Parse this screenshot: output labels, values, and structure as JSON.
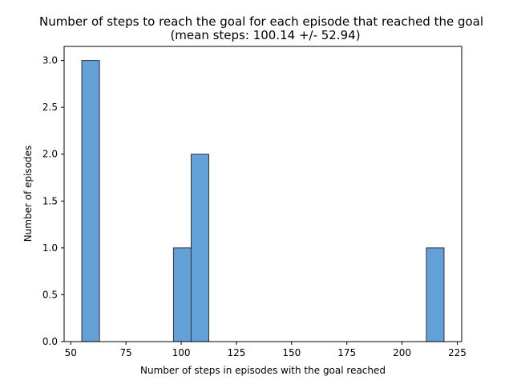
{
  "chart_data": {
    "type": "bar",
    "title_lines": [
      "Number of steps to reach the goal for each episode that reached the goal",
      "(mean steps: 100.14 +/- 52.94)"
    ],
    "xlabel": "Number of steps in episodes with the goal reached",
    "ylabel": "Number of episodes",
    "xlim": [
      47,
      227
    ],
    "ylim": [
      0,
      3.15
    ],
    "x_ticks": [
      50,
      75,
      100,
      125,
      150,
      175,
      200,
      225
    ],
    "y_ticks": [
      0.0,
      0.5,
      1.0,
      1.5,
      2.0,
      2.5,
      3.0
    ],
    "x_tick_labels": [
      "50",
      "75",
      "100",
      "125",
      "150",
      "175",
      "200",
      "225"
    ],
    "y_tick_labels": [
      "0.0",
      "0.5",
      "1.0",
      "1.5",
      "2.0",
      "2.5",
      "3.0"
    ],
    "bins": [
      {
        "x0": 55,
        "x1": 63,
        "count": 3
      },
      {
        "x0": 96.5,
        "x1": 104.5,
        "count": 1
      },
      {
        "x0": 104.5,
        "x1": 112.5,
        "count": 2
      },
      {
        "x0": 211,
        "x1": 219,
        "count": 1
      }
    ],
    "bar_color": "#5b9bd5",
    "bar_edge_color": "#333333",
    "grid": false
  }
}
